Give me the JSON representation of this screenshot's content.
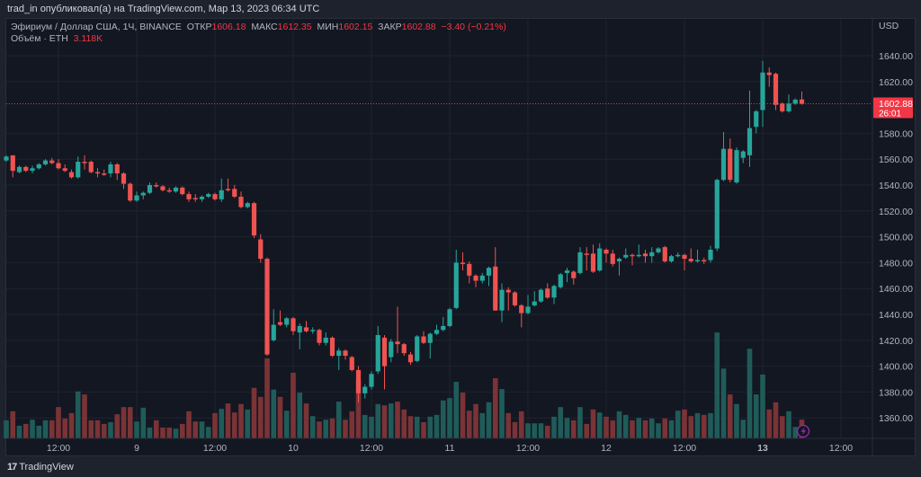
{
  "published": "trad_in опубликовал(а) на TradingView.com, Мар 13, 2023 06:34 UTC",
  "legend": {
    "symbol": "Эфириум / Доллар США, 1Ч, BINANCE",
    "open_label": "ОТКР",
    "open": "1606.18",
    "high_label": "МАКС",
    "high": "1612.35",
    "low_label": "МИН",
    "low": "1602.15",
    "close_label": "ЗАКР",
    "close": "1602.88",
    "change": "−3.40 (−0.21%)",
    "volume_label": "Объём · ETH",
    "volume": "3.118K"
  },
  "currency": "USD",
  "last_price": {
    "price": "1602.88",
    "countdown": "26:01",
    "value": 1602.88
  },
  "footer": {
    "brand": "TradingView"
  },
  "colors": {
    "up": "#26a69a",
    "down": "#ef5350",
    "up_volume": "#1f5c59",
    "down_volume": "#7a3336",
    "price_label": "#f23645",
    "background": "#131722",
    "grid": "#1f2330",
    "replay_icon": "#9c27b0"
  },
  "icons": {
    "replay": "lightning-circle-icon",
    "logo": "tradingview-logo-icon"
  },
  "chart_data": {
    "type": "candlestick",
    "interval": "1h",
    "y_axis": {
      "range": [
        1345,
        1660
      ],
      "ticks": [
        1640,
        1620,
        1580,
        1560,
        1540,
        1520,
        1500,
        1480,
        1460,
        1440,
        1420,
        1400,
        1380,
        1360
      ]
    },
    "x_ticks": [
      "12:00",
      "9",
      "12:00",
      "10",
      "12:00",
      "11",
      "12:00",
      "12",
      "12:00",
      "13",
      "12:00"
    ],
    "grid": true,
    "ohlc": [
      [
        1559,
        1563,
        1558,
        1562
      ],
      [
        1563,
        1563,
        1546,
        1551
      ],
      [
        1550,
        1555,
        1549,
        1554
      ],
      [
        1554,
        1555,
        1550,
        1551
      ],
      [
        1551,
        1555,
        1549,
        1553
      ],
      [
        1553,
        1557,
        1552,
        1556
      ],
      [
        1556,
        1560,
        1555,
        1559
      ],
      [
        1559,
        1561,
        1556,
        1557
      ],
      [
        1557,
        1560,
        1552,
        1553
      ],
      [
        1553,
        1556,
        1550,
        1551
      ],
      [
        1550,
        1552,
        1545,
        1546
      ],
      [
        1546,
        1562,
        1545,
        1558
      ],
      [
        1558,
        1563,
        1552,
        1557
      ],
      [
        1558,
        1559,
        1549,
        1550
      ],
      [
        1550,
        1553,
        1546,
        1549
      ],
      [
        1549,
        1552,
        1547,
        1548
      ],
      [
        1549,
        1558,
        1546,
        1556
      ],
      [
        1556,
        1557,
        1544,
        1549
      ],
      [
        1549,
        1550,
        1537,
        1541
      ],
      [
        1541,
        1542,
        1527,
        1528
      ],
      [
        1528,
        1535,
        1527,
        1532
      ],
      [
        1532,
        1535,
        1529,
        1534
      ],
      [
        1534,
        1542,
        1533,
        1540
      ],
      [
        1540,
        1542,
        1538,
        1539
      ],
      [
        1539,
        1540,
        1535,
        1536
      ],
      [
        1536,
        1538,
        1534,
        1535
      ],
      [
        1535,
        1539,
        1534,
        1538
      ],
      [
        1538,
        1539,
        1532,
        1533
      ],
      [
        1533,
        1535,
        1527,
        1529
      ],
      [
        1530,
        1533,
        1527,
        1529
      ],
      [
        1529,
        1532,
        1527,
        1531
      ],
      [
        1531,
        1534,
        1530,
        1533
      ],
      [
        1533,
        1534,
        1528,
        1529
      ],
      [
        1529,
        1545,
        1527,
        1536
      ],
      [
        1537,
        1545,
        1535,
        1536
      ],
      [
        1537,
        1540,
        1530,
        1531
      ],
      [
        1531,
        1535,
        1522,
        1523
      ],
      [
        1523,
        1527,
        1522,
        1526
      ],
      [
        1526,
        1527,
        1499,
        1501
      ],
      [
        1498,
        1502,
        1480,
        1483
      ],
      [
        1483,
        1484,
        1408,
        1409
      ],
      [
        1420,
        1444,
        1419,
        1432
      ],
      [
        1434,
        1443,
        1431,
        1432
      ],
      [
        1432,
        1438,
        1430,
        1437
      ],
      [
        1437,
        1438,
        1424,
        1427
      ],
      [
        1426,
        1433,
        1413,
        1431
      ],
      [
        1430,
        1435,
        1426,
        1427
      ],
      [
        1427,
        1430,
        1425,
        1428
      ],
      [
        1428,
        1429,
        1416,
        1418
      ],
      [
        1418,
        1426,
        1416,
        1422
      ],
      [
        1422,
        1423,
        1407,
        1408
      ],
      [
        1408,
        1414,
        1397,
        1412
      ],
      [
        1412,
        1413,
        1405,
        1408
      ],
      [
        1407,
        1408,
        1396,
        1397
      ],
      [
        1397,
        1400,
        1372,
        1379
      ],
      [
        1379,
        1386,
        1375,
        1384
      ],
      [
        1384,
        1396,
        1382,
        1394
      ],
      [
        1396,
        1431,
        1394,
        1424
      ],
      [
        1422,
        1424,
        1382,
        1400
      ],
      [
        1407,
        1421,
        1403,
        1419
      ],
      [
        1419,
        1446,
        1410,
        1417
      ],
      [
        1417,
        1418,
        1408,
        1410
      ],
      [
        1409,
        1411,
        1401,
        1403
      ],
      [
        1404,
        1424,
        1403,
        1423
      ],
      [
        1423,
        1427,
        1417,
        1418
      ],
      [
        1418,
        1426,
        1406,
        1425
      ],
      [
        1425,
        1432,
        1424,
        1428
      ],
      [
        1428,
        1438,
        1427,
        1431
      ],
      [
        1431,
        1445,
        1430,
        1444
      ],
      [
        1445,
        1490,
        1444,
        1480
      ],
      [
        1480,
        1488,
        1474,
        1479
      ],
      [
        1479,
        1481,
        1464,
        1470
      ],
      [
        1470,
        1471,
        1461,
        1466
      ],
      [
        1466,
        1472,
        1464,
        1470
      ],
      [
        1470,
        1477,
        1462,
        1476
      ],
      [
        1477,
        1492,
        1443,
        1443
      ],
      [
        1443,
        1464,
        1434,
        1459
      ],
      [
        1459,
        1461,
        1443,
        1457
      ],
      [
        1457,
        1458,
        1446,
        1447
      ],
      [
        1447,
        1448,
        1430,
        1441
      ],
      [
        1441,
        1455,
        1440,
        1446
      ],
      [
        1447,
        1458,
        1446,
        1450
      ],
      [
        1450,
        1460,
        1449,
        1459
      ],
      [
        1460,
        1464,
        1452,
        1453
      ],
      [
        1453,
        1463,
        1448,
        1462
      ],
      [
        1461,
        1472,
        1460,
        1471
      ],
      [
        1472,
        1476,
        1465,
        1474
      ],
      [
        1473,
        1474,
        1463,
        1468
      ],
      [
        1472,
        1492,
        1471,
        1488
      ],
      [
        1487,
        1492,
        1474,
        1486
      ],
      [
        1487,
        1494,
        1472,
        1473
      ],
      [
        1474,
        1495,
        1473,
        1491
      ],
      [
        1490,
        1491,
        1480,
        1487
      ],
      [
        1487,
        1490,
        1477,
        1479
      ],
      [
        1481,
        1484,
        1470,
        1483
      ],
      [
        1484,
        1491,
        1483,
        1486
      ],
      [
        1486,
        1487,
        1478,
        1485
      ],
      [
        1485,
        1494,
        1484,
        1486
      ],
      [
        1487,
        1490,
        1480,
        1485
      ],
      [
        1485,
        1492,
        1480,
        1488
      ],
      [
        1488,
        1492,
        1487,
        1491
      ],
      [
        1492,
        1493,
        1480,
        1481
      ],
      [
        1481,
        1486,
        1480,
        1485
      ],
      [
        1485,
        1488,
        1484,
        1486
      ],
      [
        1486,
        1487,
        1474,
        1483
      ],
      [
        1483,
        1491,
        1480,
        1481
      ],
      [
        1481,
        1490,
        1480,
        1482
      ],
      [
        1482,
        1484,
        1479,
        1481
      ],
      [
        1482,
        1493,
        1480,
        1490
      ],
      [
        1491,
        1545,
        1489,
        1544
      ],
      [
        1544,
        1581,
        1543,
        1568
      ],
      [
        1568,
        1576,
        1542,
        1544
      ],
      [
        1542,
        1569,
        1541,
        1567
      ],
      [
        1561,
        1567,
        1557,
        1566
      ],
      [
        1563,
        1613,
        1554,
        1584
      ],
      [
        1585,
        1598,
        1580,
        1597
      ],
      [
        1598,
        1636,
        1585,
        1627
      ],
      [
        1627,
        1631,
        1616,
        1625
      ],
      [
        1626,
        1627,
        1598,
        1602
      ],
      [
        1603,
        1604,
        1596,
        1597
      ],
      [
        1597,
        1610,
        1596,
        1603
      ],
      [
        1603,
        1607,
        1602,
        1606
      ],
      [
        1606.18,
        1612.35,
        1602.15,
        1602.88
      ]
    ],
    "volume_k": [
      3.0,
      4.5,
      2.1,
      2.4,
      3.1,
      2.1,
      3.0,
      3.0,
      5.2,
      3.3,
      4.2,
      7.8,
      7.3,
      3.0,
      3.0,
      2.4,
      2.7,
      4.0,
      5.2,
      5.2,
      2.8,
      5.1,
      1.8,
      3.0,
      1.8,
      1.8,
      1.6,
      2.4,
      4.5,
      2.8,
      2.8,
      1.9,
      4.2,
      4.9,
      5.8,
      4.3,
      5.7,
      4.8,
      8.4,
      6.9,
      13.3,
      8.1,
      6.9,
      4.6,
      10.9,
      7.6,
      5.8,
      3.7,
      2.8,
      3.1,
      3.3,
      6.1,
      3.1,
      4.5,
      9.7,
      3.9,
      3.6,
      5.7,
      5.5,
      5.8,
      6.1,
      4.8,
      3.7,
      3.6,
      2.7,
      3.6,
      3.9,
      6.3,
      6.7,
      9.4,
      7.6,
      4.6,
      5.7,
      4.2,
      6.0,
      10.0,
      8.2,
      4.2,
      2.7,
      4.5,
      2.5,
      2.5,
      2.5,
      2.1,
      3.6,
      5.2,
      3.4,
      3.0,
      5.2,
      2.4,
      4.8,
      4.3,
      3.6,
      3.0,
      4.5,
      3.9,
      3.0,
      3.4,
      3.0,
      3.3,
      2.5,
      3.3,
      3.0,
      4.6,
      4.8,
      3.7,
      4.2,
      3.9,
      4.2,
      17.6,
      11.6,
      7.3,
      5.7,
      3.1,
      14.9,
      7.3,
      10.6,
      4.8,
      6.0,
      3.7,
      4.5,
      1.9,
      3.118
    ]
  }
}
